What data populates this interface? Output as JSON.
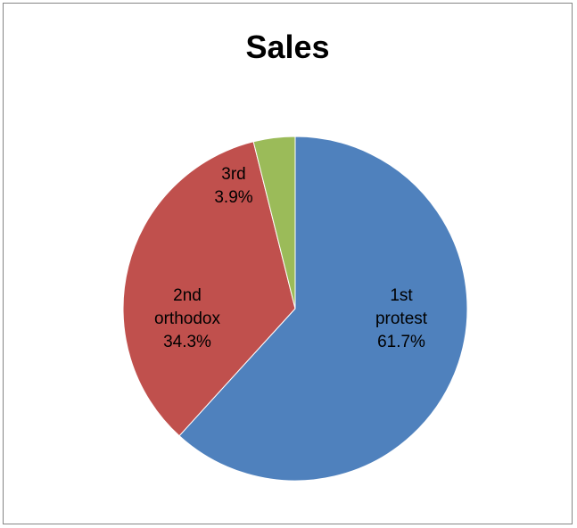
{
  "chart_data": {
    "type": "pie",
    "title": "Sales",
    "slices": [
      {
        "label_lines": [
          "1st",
          "protest"
        ],
        "value": 61.7,
        "percent_label": "61.7%",
        "color": "#4F81BD"
      },
      {
        "label_lines": [
          "2nd",
          "orthodox"
        ],
        "value": 34.3,
        "percent_label": "34.3%",
        "color": "#C0504D"
      },
      {
        "label_lines": [
          "3rd"
        ],
        "value": 3.9,
        "percent_label": "3.9%",
        "color": "#9BBB59"
      }
    ],
    "legend": "none"
  }
}
